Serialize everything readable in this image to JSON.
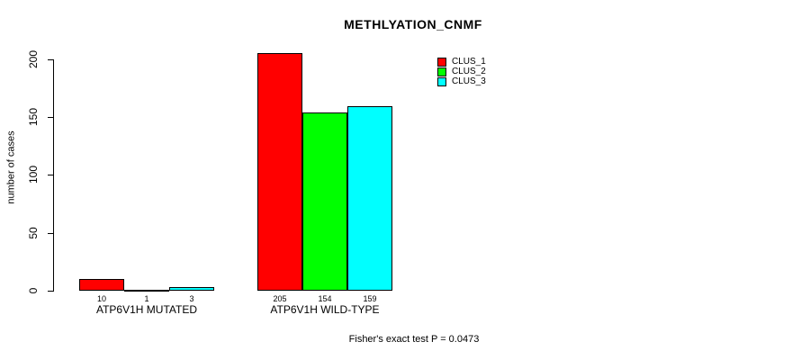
{
  "title": "METHLYATION_CNMF",
  "y_axis": {
    "label": "number of cases",
    "ticks": [
      "0",
      "50",
      "100",
      "150",
      "200"
    ]
  },
  "legend": {
    "items": [
      {
        "label": "CLUS_1",
        "color": "#ff0000"
      },
      {
        "label": "CLUS_2",
        "color": "#00ff00"
      },
      {
        "label": "CLUS_3",
        "color": "#00ffff"
      }
    ]
  },
  "footer": "Fisher's exact test P = 0.0473",
  "chart_data": {
    "type": "bar",
    "title": "METHLYATION_CNMF",
    "xlabel": "",
    "ylabel": "number of cases",
    "ylim": [
      0,
      210
    ],
    "yticks": [
      0,
      50,
      100,
      150,
      200
    ],
    "grid": false,
    "legend_position": "top-right-inside",
    "bar_border_color": "#000000",
    "background_color": "#ffffff",
    "categories": [
      "ATP6V1H MUTATED",
      "ATP6V1H WILD-TYPE"
    ],
    "series": [
      {
        "name": "CLUS_1",
        "color": "#ff0000",
        "values": [
          10,
          205
        ]
      },
      {
        "name": "CLUS_2",
        "color": "#00ff00",
        "values": [
          1,
          154
        ]
      },
      {
        "name": "CLUS_3",
        "color": "#00ffff",
        "values": [
          3,
          159
        ]
      }
    ],
    "bar_value_labels": [
      [
        "10",
        "1",
        "3"
      ],
      [
        "205",
        "154",
        "159"
      ]
    ],
    "annotation": "Fisher's exact test P = 0.0473"
  }
}
